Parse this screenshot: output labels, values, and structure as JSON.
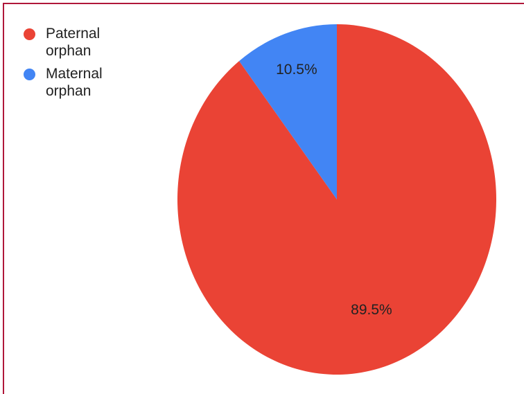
{
  "chart_data": {
    "type": "pie",
    "categories": [
      "Paternal orphan",
      "Maternal orphan"
    ],
    "values": [
      89.5,
      10.5
    ],
    "labels": [
      "89.5%",
      "10.5%"
    ],
    "colors": [
      "#ea4335",
      "#4285f4"
    ],
    "legend_position": "top-left"
  }
}
